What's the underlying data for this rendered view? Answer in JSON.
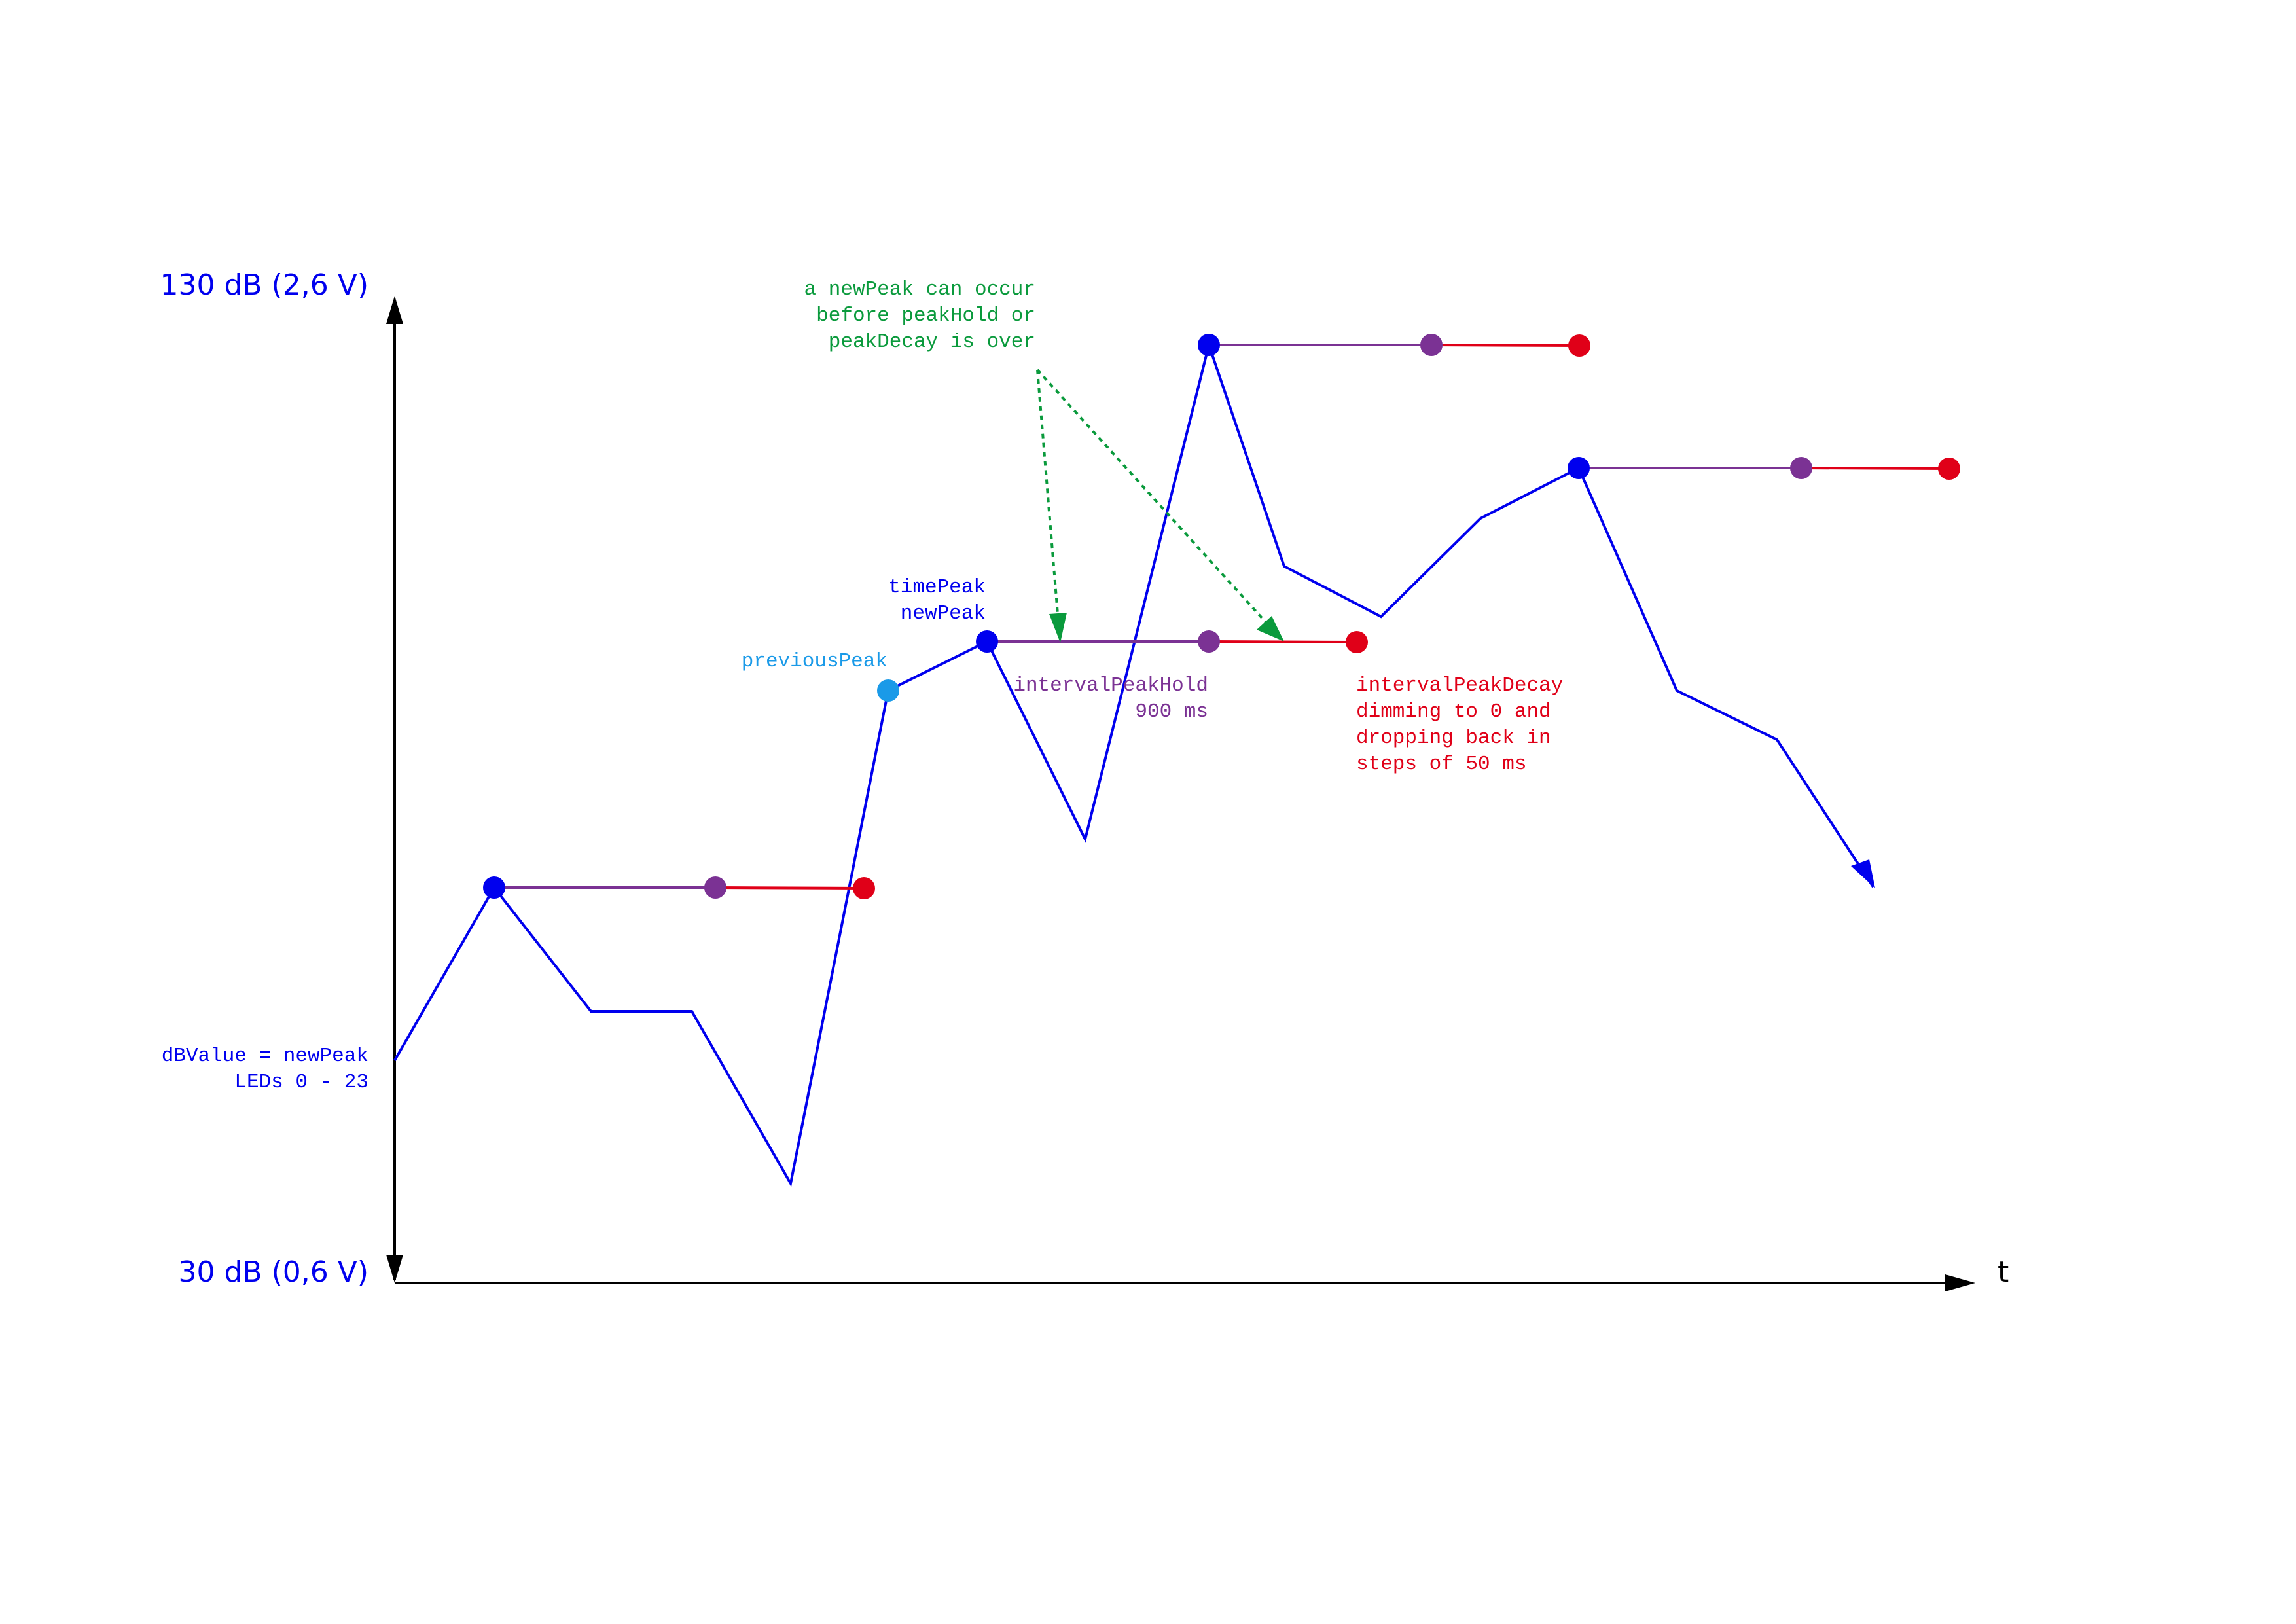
{
  "axes": {
    "y_top_label": "130 dB (2,6 V)",
    "y_bottom_label": "30 dB (0,6 V)",
    "x_label": "t"
  },
  "annotations": {
    "left": {
      "lines": [
        "dBValue = newPeak",
        "LEDs 0 - 23"
      ],
      "color": "#0000ee"
    },
    "time_peak": {
      "lines": [
        "timePeak",
        "newPeak"
      ],
      "color": "#0000ee"
    },
    "previous_peak": {
      "lines": [
        "previousPeak"
      ],
      "color": "#1a9ae8"
    },
    "peak_hold": {
      "lines": [
        "intervalPeakHold",
        "900 ms"
      ],
      "color": "#7b3294"
    },
    "peak_decay": {
      "lines": [
        "intervalPeakDecay",
        "dimming to 0 and",
        "dropping back in",
        "steps of 50 ms"
      ],
      "color": "#e00018"
    },
    "new_peak_note": {
      "lines": [
        "a newPeak can occur",
        "before peakHold or",
        "peakDecay is over"
      ],
      "color": "#0a9a3c"
    }
  },
  "colors": {
    "signal": "#0000ee",
    "hold": "#7b3294",
    "decay": "#e00018",
    "previous_peak": "#1a9ae8",
    "note": "#0a9a3c",
    "axis": "#000000"
  }
}
